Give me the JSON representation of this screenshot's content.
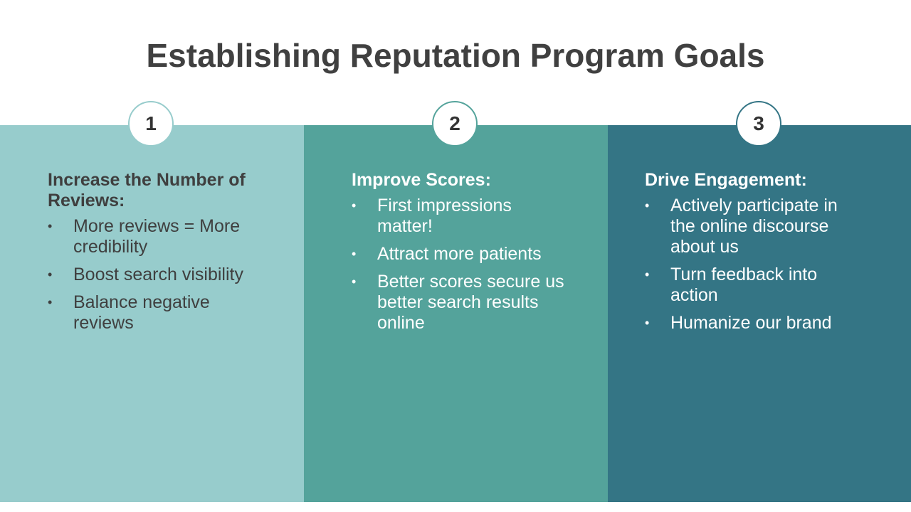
{
  "slide": {
    "title": "Establishing Reputation Program Goals"
  },
  "columns": [
    {
      "number": "1",
      "heading": "Increase the Number of Reviews:",
      "items": [
        "More reviews = More credibility",
        "Boost search visibility",
        "Balance negative reviews"
      ]
    },
    {
      "number": "2",
      "heading": "Improve Scores:",
      "items": [
        "First impressions matter!",
        "Attract more patients",
        "Better scores secure us better search results online"
      ]
    },
    {
      "number": "3",
      "heading": "Drive Engagement:",
      "items": [
        "Actively participate in the online discourse about us",
        "Turn feedback into action",
        "Humanize our brand"
      ]
    }
  ],
  "colors": {
    "column_1": "#97cccc",
    "column_2": "#54a39b",
    "column_3": "#347585",
    "title_text": "#404040"
  }
}
